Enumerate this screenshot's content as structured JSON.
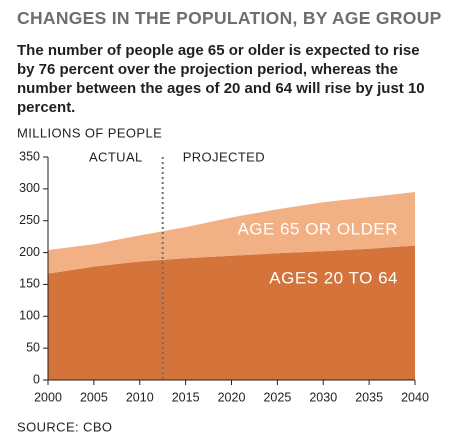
{
  "chart_data": {
    "type": "stacked-area",
    "title": "CHANGES IN THE POPULATION, BY AGE GROUP",
    "subtitle": "The number of people age 65 or older is expected to rise by 76 percent over the projection period, whereas the number between the ages of 20 and 64 will rise by just 10 percent.",
    "y_label": "MILLIONS OF PEOPLE",
    "source": "SOURCE: CBO",
    "annotations": [
      "ACTUAL",
      "PROJECTED"
    ],
    "divider_x": 2012.5,
    "x": [
      2000,
      2005,
      2010,
      2015,
      2020,
      2025,
      2030,
      2035,
      2040
    ],
    "series": [
      {
        "name": "AGES 20 TO 64",
        "color": "#d4733a",
        "values": [
          167,
          178,
          186,
          191,
          195,
          199,
          202,
          206,
          211
        ]
      },
      {
        "name": "AGE 65 OR OLDER",
        "color": "#f2b184",
        "values": [
          37,
          35,
          41,
          49,
          60,
          69,
          77,
          81,
          84
        ]
      }
    ],
    "xlim": [
      2000,
      2040
    ],
    "xticks": [
      2000,
      2005,
      2010,
      2015,
      2020,
      2025,
      2030,
      2035,
      2040
    ],
    "ylim": [
      0,
      350
    ],
    "yticks": [
      0,
      50,
      100,
      150,
      200,
      250,
      300,
      350
    ]
  }
}
